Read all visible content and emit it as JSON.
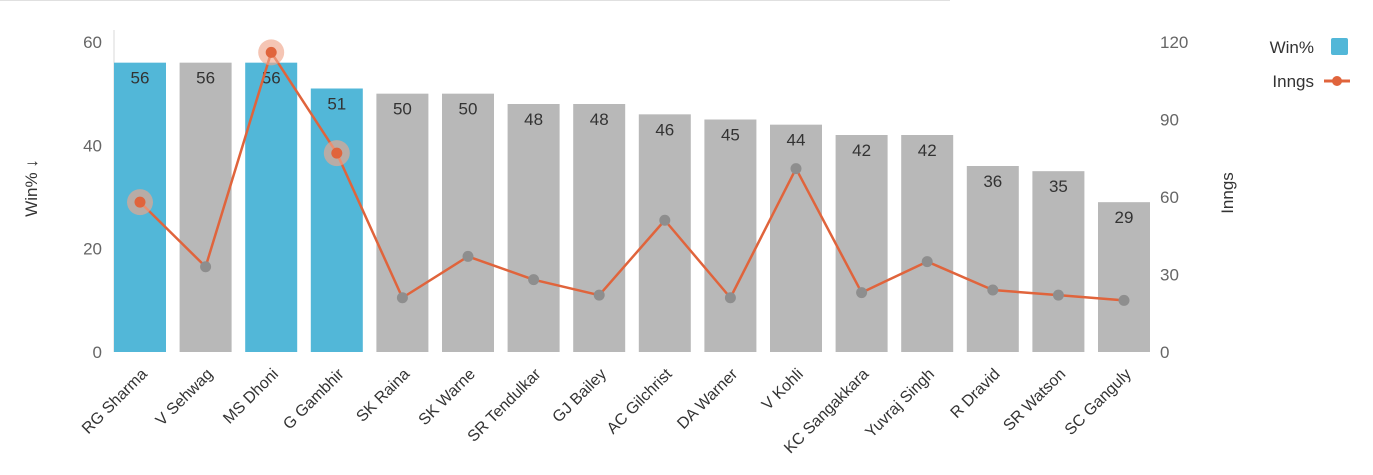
{
  "chart_data": {
    "type": "bar",
    "categories": [
      "RG Sharma",
      "V Sehwag",
      "MS Dhoni",
      "G Gambhir",
      "SK Raina",
      "SK Warne",
      "SR Tendulkar",
      "GJ Bailey",
      "AC Gilchrist",
      "DA Warner",
      "V Kohli",
      "KC Sangakkara",
      "Yuvraj Singh",
      "R Dravid",
      "SR Watson",
      "SC Ganguly"
    ],
    "series": [
      {
        "name": "Win%",
        "type": "bar",
        "axis": "left",
        "values": [
          56,
          56,
          56,
          51,
          50,
          50,
          48,
          48,
          46,
          45,
          44,
          42,
          42,
          36,
          35,
          29
        ],
        "highlighted": [
          true,
          false,
          true,
          true,
          false,
          false,
          false,
          false,
          false,
          false,
          false,
          false,
          false,
          false,
          false,
          false
        ]
      },
      {
        "name": "Inngs",
        "type": "line",
        "axis": "right",
        "values": [
          58,
          33,
          116,
          77,
          21,
          37,
          28,
          22,
          51,
          21,
          71,
          23,
          35,
          24,
          22,
          20
        ]
      }
    ],
    "ylabel": "Win%",
    "ylabel_sort_indicator": "↓",
    "ylim": [
      0,
      60
    ],
    "yticks": [
      "0",
      "20",
      "40",
      "60"
    ],
    "y2label": "Inngs",
    "y2lim": [
      0,
      120
    ],
    "y2ticks": [
      "0",
      "30",
      "60",
      "90",
      "120"
    ],
    "xlabel": "",
    "legend": {
      "placement": "top-right",
      "items": [
        "Win%",
        "Inngs"
      ]
    },
    "grid": false,
    "colors": {
      "bar_highlight": "#52b7d8",
      "bar_default": "#b8b8b8",
      "line": "#e0643c",
      "point_default": "#8e8e8e",
      "halo": "#f0a68c"
    }
  }
}
